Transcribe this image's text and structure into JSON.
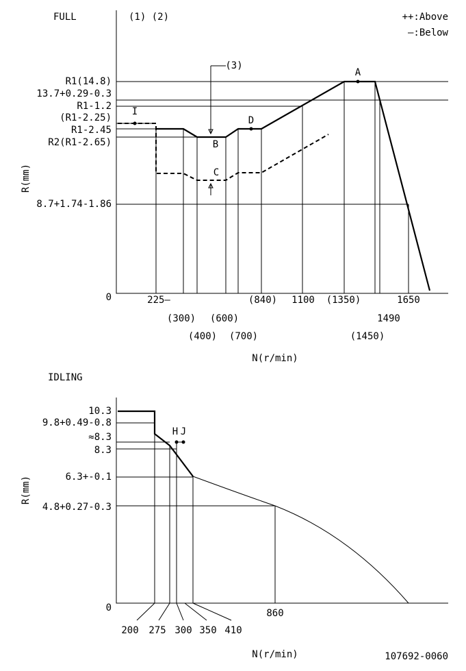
{
  "full": {
    "title": "FULL",
    "notes": "(1) (2)",
    "legend": [
      "++:Above",
      "—:Below"
    ],
    "y_labels": [
      "R1(14.8)",
      "13.7+0.29-0.3",
      "R1-1.2",
      "(R1-2.25)",
      "R1-2.45",
      "R2(R1-2.65)",
      "8.7+1.74-1.86",
      "0"
    ],
    "y_title": "R(mm)",
    "x_labels": [
      "225—",
      "(300)",
      "(400)",
      "(600)",
      "(700)",
      "(840)",
      "1100",
      "(1350)",
      "1490",
      "(1450)",
      "1650"
    ],
    "x_title": "N(r/min)",
    "points": [
      "A",
      "B",
      "C",
      "D",
      "I",
      "(3)"
    ]
  },
  "idling": {
    "title": "IDLING",
    "y_labels": [
      "10.3",
      "9.8+0.49-0.8",
      "≈8.3",
      "8.3",
      "6.3+-0.1",
      "4.8+0.27-0.3",
      "0"
    ],
    "y_title": "R(mm)",
    "x_labels": [
      "200",
      "275",
      "300",
      "350",
      "410",
      "860"
    ],
    "x_title": "N(r/min)",
    "points": [
      "H",
      "J"
    ]
  },
  "code": "107692-0060"
}
